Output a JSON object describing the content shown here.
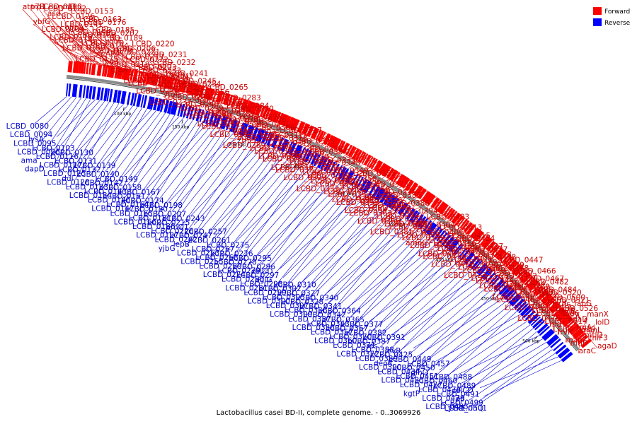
{
  "caption": "Lactobacillus casei BD-II, complete genome. - 0..3069926",
  "legend": {
    "forward_label": "Forward",
    "reverse_label": "Reverse",
    "forward_color": "#ff0000",
    "reverse_color": "#0000ff"
  },
  "ticks": [
    "100 kbp",
    "150 kbp",
    "200 kbp",
    "250 kbp",
    "300 kbp",
    "350 kbp",
    "400 kbp",
    "450 kbp",
    "500 kbp"
  ],
  "forward_labels": [
    "atp7B",
    "trp1",
    "LCBD_0100",
    "asd",
    "ybfG",
    "LCBD_0104",
    "LCBD_0118",
    "nrdD",
    "LCBD_0122",
    "LCBD_0126",
    "LCBD_0141",
    "LCBD_0144",
    "LCBD_0145",
    "LCBD_0150",
    "LCBD_0153",
    "LCBD_0163",
    "oppA",
    "LCBD_0168",
    "LCBD_0170",
    "LCBD_0173",
    "LCBD_0175",
    "LCBD_0176",
    "LCBD_0185",
    "LCBD_0189",
    "LCBD_0194",
    "steAP4",
    "gidB",
    "greA",
    "LCBD_0202",
    "ychF",
    "LCBD_0206",
    "LCBD_0217",
    "LCBD_0218",
    "iolT1",
    "LCBD_0219",
    "LCBD_0220",
    "LCBD_0221",
    "LCBD_0222",
    "LCBD_0223",
    "LCBD_0225",
    "LCBD_0227",
    "LCBD_0230",
    "LCBD_0231",
    "LCBD_0232",
    "LCBD_0233",
    "LCBD_0234",
    "LCBD_0235",
    "ytgP",
    "LCBD_0237",
    "idnT",
    "LCBD_0241",
    "LCBD_0245",
    "LCBD_0248",
    "LCBD_0249",
    "LCBD_0250",
    "LCBD_0251",
    "athM1",
    "LCBD_0254",
    "LCBD_0256",
    "deoD",
    "LCBD_0259",
    "LCBD_0260",
    "LCBD_0262",
    "LCBD_0265",
    "deoB",
    "LCBD_0266",
    "LCBD_0270",
    "LCBD_0273",
    "LCBD_0277",
    "LCBD_0282",
    "LCBD_0283",
    "LCBD_0284",
    "LCBD_0285",
    "LCBD_0286",
    "nagA",
    "LCBD_0287",
    "LCBD_0289",
    "LCBD_0290",
    "LCBD_0291",
    "LCBD_0292",
    "LCBD_0293",
    "theD",
    "LCBD_0294",
    "LCBD_0304",
    "LCBD_0306",
    "LCBD_0308",
    "LCBD_0311",
    "LCBD_0312",
    "LCBD_0313",
    "LCBD_0315",
    "LCBD_0316",
    "LCBD_0317",
    "LCBD_0318",
    "yshA",
    "LCBD_0320",
    "LCBD_0321",
    "LCBD_0322",
    "LCBD_0323",
    "LCBD_0325",
    "LCBD_0326",
    "LCBD_0330",
    "rbsC",
    "LCBD_0331",
    "LCBD_0332",
    "LCBD_0333",
    "LCBD_0334",
    "LCBD_0335",
    "mtlR",
    "LCBD_0339",
    "LCBD_0344",
    "LCBD_0345",
    "LCBD_0347",
    "LCBD_0348",
    "LCBD_0349",
    "LCBD_0350",
    "LCBD_0351",
    "LCBD_0352",
    "LCBD_0353",
    "LCBD_0354",
    "LCBD_0355",
    "LCBD_0356",
    "LCBD_0358",
    "LCBD_0359",
    "LCBD_0361",
    "LCBD_0363",
    "LCBD_0366",
    "LCBD_0373",
    "LCBD_0375",
    "LCBD_0376",
    "LCBD_0378",
    "LCBD_0379",
    "LCBD_0380",
    "LCBD_0381",
    "LCBD_0385",
    "LCBD_0386",
    "LCBD_0394",
    "LCBD_0395",
    "LCBD_0397",
    "LCBD_0398",
    "ampC",
    "dcuC",
    "rihA",
    "rpoN",
    "celR",
    "LCBD_0399",
    "LCBD_0400",
    "LCBD_0401",
    "LCBD_0403",
    "LCBD_0404",
    "LCBD_0405",
    "LCBD_0406",
    "LCBD_0408",
    "LCBD_0411",
    "LCBD_0412",
    "LCBD_0413",
    "LCBD_0415",
    "LCBD_0416",
    "LCBD_0420",
    "LCBD_0421",
    "LCBD_0422",
    "LCBD_0423",
    "LCBD_0424",
    "LCBD_0427",
    "LCBD_0428",
    "LCBD_0429",
    "LCBD_0430",
    "LCBD_0432",
    "LCBD_0436",
    "LCBD_0437",
    "LCBD_0438",
    "LCBD_0439",
    "LCBD_0440",
    "LCBD_0442",
    "LCBD_0444",
    "LCBD_0446",
    "LCBD_0447",
    "LCBD_0448",
    "LCBD_0452",
    "LCBD_0454",
    "LCBD_0463",
    "LCBD_0464",
    "LCBD_0465",
    "LCBD_0466",
    "LCBD_0467",
    "LCBD_0468",
    "LCBD_0472",
    "LCBD_0473",
    "LCBD_0475",
    "LCBD_0476",
    "LCBD_0482",
    "LCBD_0484",
    "LCBD_0500",
    "LCBD_0505",
    "LCBD_0506",
    "LCBD_0514",
    "LCBD_0519",
    "LCBD_0520",
    "LCBD_0521",
    "LCBD_0526",
    "sorA",
    "fba",
    "frvR",
    "manZ",
    "fabG",
    "xylB",
    "agaD",
    "fruA",
    "mtlD",
    "mtlD",
    "araC",
    "manX",
    "lolD",
    "manL",
    "thiF3",
    "agaD"
  ],
  "reverse_labels": [
    "LCBD_0080",
    "LCBD_0094",
    "LCBD_0095",
    "LCBD_0096",
    "ama",
    "dapD",
    "lysA",
    "LCBD_0103",
    "LCBD_0116",
    "LCBD_0117",
    "LCBD_0125",
    "LCBD_0128",
    "LCBD_0130",
    "LCBD_0131",
    "LCBD_0132",
    "ddl",
    "LCBD_0133",
    "LCBD_0134",
    "LCBD_0139",
    "LCBD_0140",
    "LCBD_0142",
    "LCBD_0143",
    "LCBD_0146",
    "LCBD_0147",
    "LCBD_0149",
    "LCBD_0158",
    "LCBD_0161",
    "LCBD_0164",
    "LCBD_0165",
    "LCBD_0166",
    "LCBD_0167",
    "LCBD_0174",
    "LCBD_0180",
    "LCBD_0181",
    "LCBD_0186",
    "LCBD_0197",
    "LCBD_0198",
    "LCBD_0207",
    "LCBD_0215",
    "LCBD_0226",
    "LCBD_0242",
    "yjbG",
    "LCBD_0243",
    "brnQ1",
    "LCBD_0247",
    "lepB",
    "LCBD_0253",
    "LCBD_0255",
    "LCBD_0257",
    "LCBD_0261",
    "LCBD_0267",
    "LCBD_0268",
    "LCBD_0269",
    "LCBD_0274",
    "LCBD_0275",
    "LCBD_0276",
    "LCBD_0278",
    "LCBD_0279",
    "LCBD_0280",
    "LCBD_0281",
    "LCBD_0295",
    "LCBD_0296",
    "LCBD_0297",
    "LCBD_0298",
    "LCBD_0299",
    "LCBD_0300",
    "celCD",
    "bglG",
    "LCBD_0302",
    "LCBD_0305",
    "LCBD_0307",
    "LCBD_0309",
    "LCBD_0310",
    "LCBD_0327",
    "LCBD_0328",
    "LCBD_0336",
    "LCBD_0337",
    "LCBD_0338",
    "LCBD_0340",
    "LCBD_0341",
    "LCBD_0342",
    "LCBD_0343",
    "LCBD_0357",
    "LCBD_0360",
    "LCBD_0364",
    "LCBD_0365",
    "LCBD_0367",
    "LCBD_0370",
    "LCBD_0371",
    "LCBD_0372",
    "LCBD_0377",
    "LCBD_0382",
    "LCBD_0387",
    "LCBD_0388",
    "LCBD_0389",
    "LCBD_0390",
    "LCBD_0391",
    "res",
    "LCBD_0425",
    "deoR",
    "LCBD_0434",
    "LCBD_0435",
    "levR",
    "LCBD_0449",
    "LCBD_0450",
    "LCBD_0451",
    "LCBD_0477",
    "kgtP",
    "LCBD_0457",
    "glnQ",
    "LCBD_0460",
    "LCBD_0478",
    "LCBD_0479",
    "LCBD_0485",
    "LCBD_0488",
    "LCBD_0489",
    "LCBD_0491",
    "LCBD_0499",
    "LCBD_0501",
    "yckE.rinQ",
    "celCD",
    "dp"
  ]
}
